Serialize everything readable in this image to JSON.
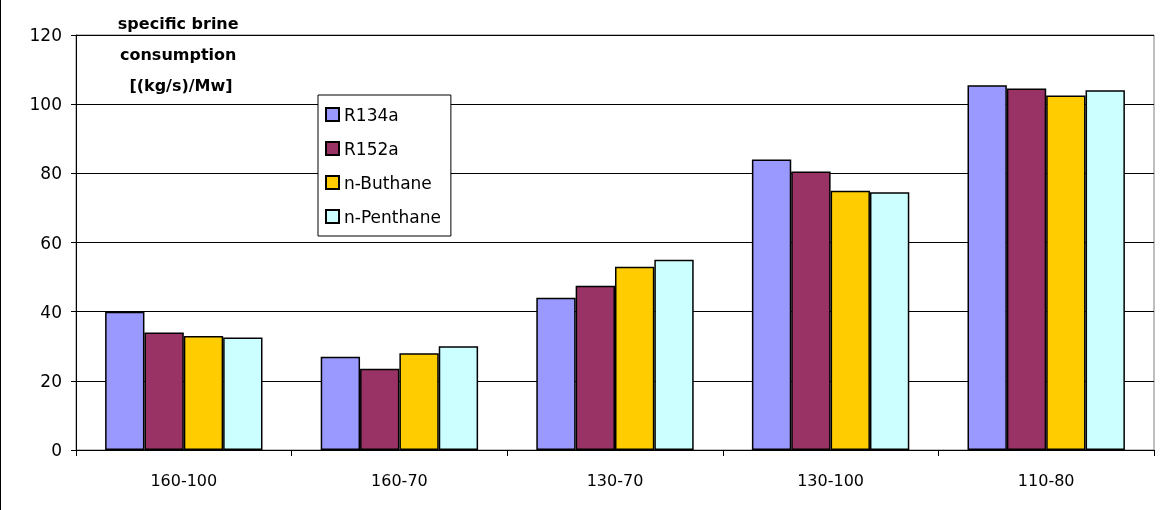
{
  "chart_data": {
    "type": "bar",
    "ylabel": "specific brine consumption [(kg/s)/Mw]",
    "categories": [
      "160-100",
      "160-70",
      "130-70",
      "130-100",
      "110-80"
    ],
    "series": [
      {
        "name": "R134a",
        "color": "#9999ff",
        "values": [
          40,
          27,
          44,
          84,
          105.5
        ]
      },
      {
        "name": "R152a",
        "color": "#993366",
        "values": [
          34,
          23.5,
          47.5,
          80.5,
          104.5
        ]
      },
      {
        "name": "n-Buthane",
        "color": "#ffcc00",
        "values": [
          33,
          28,
          53,
          75,
          102.5
        ]
      },
      {
        "name": "n-Penthane",
        "color": "#ccffff",
        "values": [
          32.5,
          30,
          55,
          74.5,
          104
        ]
      }
    ],
    "ylim": [
      0,
      120
    ],
    "yticks": [
      0,
      20,
      40,
      60,
      80,
      100,
      120
    ],
    "grid": "y",
    "legend": "top left"
  }
}
